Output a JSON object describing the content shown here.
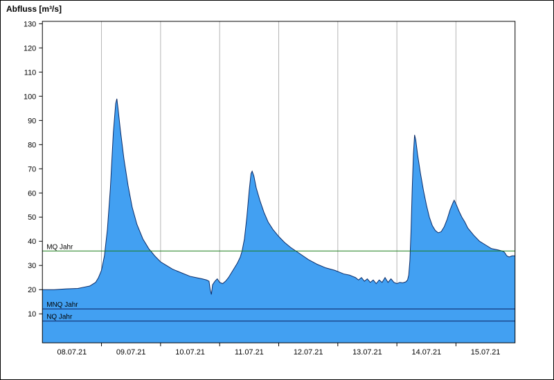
{
  "window": {
    "title": "Abfluss [m³/s]"
  },
  "chart_data": {
    "type": "area",
    "title": "Abfluss [m³/s]",
    "ylabel": "Abfluss [m³/s]",
    "xlabel": "",
    "grid": "vertical-only",
    "legend": "none",
    "xlim": [
      0,
      8
    ],
    "ylim": [
      -2,
      131
    ],
    "yticks": [
      10,
      20,
      30,
      40,
      50,
      60,
      70,
      80,
      90,
      100,
      110,
      120,
      130
    ],
    "x_tick_labels": [
      "08.07.21",
      "09.07.21",
      "10.07.21",
      "11.07.21",
      "12.07.21",
      "13.07.21",
      "14.07.21",
      "15.07.21"
    ],
    "reference_lines": [
      {
        "id": "mq",
        "label": "MQ Jahr",
        "value": 36,
        "color": "#1a7d1a"
      },
      {
        "id": "mnq",
        "label": "MNQ Jahr",
        "value": 12,
        "color": "#0a1e5e"
      },
      {
        "id": "nq",
        "label": "NQ Jahr",
        "value": 7,
        "color": "#0a1e5e"
      }
    ],
    "colors": {
      "area_fill": "#42a0f2",
      "area_edge": "#0a2a66",
      "grid": "#b4b4b4",
      "axis": "#000000",
      "background": "#ffffff"
    },
    "series": [
      {
        "name": "Abfluss",
        "unit": "m³/s",
        "points": [
          [
            0.0,
            20
          ],
          [
            0.2,
            20
          ],
          [
            0.4,
            20.3
          ],
          [
            0.6,
            20.5
          ],
          [
            0.7,
            21
          ],
          [
            0.8,
            21.5
          ],
          [
            0.9,
            23
          ],
          [
            0.95,
            25
          ],
          [
            1.0,
            28
          ],
          [
            1.05,
            34
          ],
          [
            1.1,
            45
          ],
          [
            1.15,
            62
          ],
          [
            1.2,
            85
          ],
          [
            1.24,
            97
          ],
          [
            1.26,
            99
          ],
          [
            1.28,
            95
          ],
          [
            1.32,
            86
          ],
          [
            1.38,
            74
          ],
          [
            1.45,
            63
          ],
          [
            1.52,
            54
          ],
          [
            1.6,
            47
          ],
          [
            1.7,
            41
          ],
          [
            1.8,
            37
          ],
          [
            1.9,
            34
          ],
          [
            2.0,
            31.5
          ],
          [
            2.1,
            30
          ],
          [
            2.2,
            28.5
          ],
          [
            2.35,
            27
          ],
          [
            2.5,
            25.5
          ],
          [
            2.6,
            25
          ],
          [
            2.7,
            24.5
          ],
          [
            2.78,
            24
          ],
          [
            2.82,
            23.5
          ],
          [
            2.84,
            20
          ],
          [
            2.86,
            18
          ],
          [
            2.88,
            22
          ],
          [
            2.92,
            23.5
          ],
          [
            2.96,
            24.5
          ],
          [
            3.0,
            23
          ],
          [
            3.05,
            22.5
          ],
          [
            3.1,
            23.5
          ],
          [
            3.15,
            25
          ],
          [
            3.2,
            27
          ],
          [
            3.25,
            29
          ],
          [
            3.3,
            31
          ],
          [
            3.35,
            33.5
          ],
          [
            3.38,
            36
          ],
          [
            3.42,
            41
          ],
          [
            3.46,
            50
          ],
          [
            3.5,
            61
          ],
          [
            3.53,
            68
          ],
          [
            3.55,
            69
          ],
          [
            3.58,
            67
          ],
          [
            3.62,
            62
          ],
          [
            3.68,
            57
          ],
          [
            3.75,
            52
          ],
          [
            3.82,
            48
          ],
          [
            3.9,
            45
          ],
          [
            4.0,
            42
          ],
          [
            4.1,
            39.5
          ],
          [
            4.2,
            37.5
          ],
          [
            4.35,
            35
          ],
          [
            4.5,
            32.5
          ],
          [
            4.65,
            30.5
          ],
          [
            4.8,
            29
          ],
          [
            4.95,
            28
          ],
          [
            5.1,
            26.5
          ],
          [
            5.2,
            26
          ],
          [
            5.3,
            25
          ],
          [
            5.35,
            24
          ],
          [
            5.4,
            25
          ],
          [
            5.45,
            23.5
          ],
          [
            5.5,
            24.5
          ],
          [
            5.55,
            23
          ],
          [
            5.6,
            24
          ],
          [
            5.65,
            22.5
          ],
          [
            5.7,
            24
          ],
          [
            5.75,
            23
          ],
          [
            5.8,
            25
          ],
          [
            5.85,
            23
          ],
          [
            5.9,
            24.5
          ],
          [
            5.95,
            23
          ],
          [
            6.0,
            22.5
          ],
          [
            6.05,
            23
          ],
          [
            6.1,
            22.8
          ],
          [
            6.15,
            23.2
          ],
          [
            6.18,
            24
          ],
          [
            6.2,
            26
          ],
          [
            6.22,
            32
          ],
          [
            6.24,
            45
          ],
          [
            6.26,
            62
          ],
          [
            6.28,
            76
          ],
          [
            6.3,
            84
          ],
          [
            6.32,
            82
          ],
          [
            6.35,
            76
          ],
          [
            6.4,
            68
          ],
          [
            6.45,
            61
          ],
          [
            6.5,
            55
          ],
          [
            6.55,
            50
          ],
          [
            6.6,
            46.5
          ],
          [
            6.65,
            44.5
          ],
          [
            6.7,
            43.5
          ],
          [
            6.75,
            44
          ],
          [
            6.8,
            46
          ],
          [
            6.85,
            49
          ],
          [
            6.9,
            53
          ],
          [
            6.95,
            56
          ],
          [
            6.97,
            57
          ],
          [
            7.0,
            55.5
          ],
          [
            7.05,
            52.5
          ],
          [
            7.1,
            50
          ],
          [
            7.15,
            48
          ],
          [
            7.2,
            45.5
          ],
          [
            7.3,
            42.5
          ],
          [
            7.4,
            40
          ],
          [
            7.5,
            38.5
          ],
          [
            7.6,
            37
          ],
          [
            7.7,
            36.5
          ],
          [
            7.78,
            36
          ],
          [
            7.82,
            35.5
          ],
          [
            7.86,
            34
          ],
          [
            7.9,
            33.5
          ],
          [
            7.95,
            34
          ],
          [
            8.0,
            34
          ]
        ]
      }
    ]
  }
}
